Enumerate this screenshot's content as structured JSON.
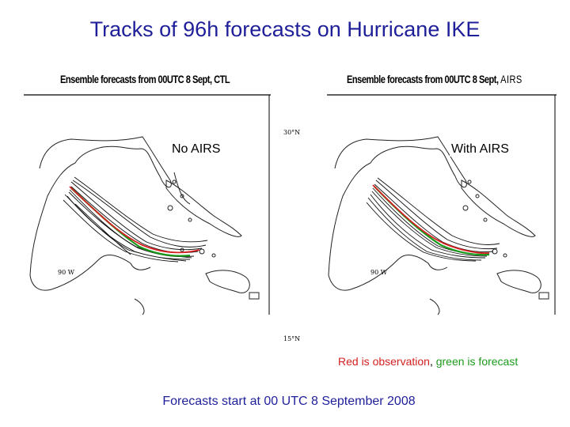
{
  "slide": {
    "title": "Tracks of 96h forecasts on Hurricane IKE",
    "footer": "Forecasts start at 00 UTC 8 September 2008"
  },
  "panels": [
    {
      "header": "Ensemble forecasts from 00UTC 8 Sept, CTL",
      "label": "No AIRS",
      "lon_label": "90 W"
    },
    {
      "header": "Ensemble forecasts from 00UTC 8 Sept,",
      "header_tag": "AIRS",
      "label": "With AIRS",
      "lon_label": "90 W"
    }
  ],
  "lat_ticks": {
    "top": "30°N",
    "bottom": "15°N"
  },
  "legend": {
    "observation_text": "Red is observation",
    "separator": ", ",
    "forecast_text": "green is forecast",
    "observation_color": "#d42020",
    "forecast_color": "#1a9a1a"
  },
  "colors": {
    "title": "#1f1f9a",
    "observation_track": "#d42020",
    "forecast_track": "#1a9a1a",
    "ensemble_track": "#111111"
  }
}
